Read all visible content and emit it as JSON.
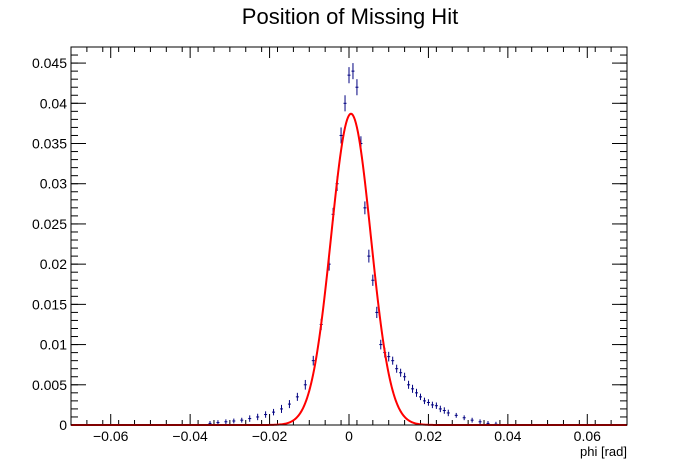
{
  "chart_data": {
    "type": "scatter",
    "title": "Position of Missing Hit",
    "xlabel": "phi [rad]",
    "ylabel": "",
    "xlim": [
      -0.07,
      0.07
    ],
    "ylim": [
      0,
      0.047
    ],
    "x_major_ticks": [
      -0.06,
      -0.04,
      -0.02,
      0,
      0.02,
      0.04,
      0.06
    ],
    "x_tick_labels": [
      "−0.06",
      "−0.04",
      "−0.02",
      "0",
      "0.02",
      "0.04",
      "0.06"
    ],
    "y_major_ticks": [
      0,
      0.005,
      0.01,
      0.015,
      0.02,
      0.025,
      0.03,
      0.035,
      0.04,
      0.045
    ],
    "y_tick_labels": [
      "0",
      "0.005",
      "0.01",
      "0.015",
      "0.02",
      "0.025",
      "0.03",
      "0.035",
      "0.04",
      "0.045"
    ],
    "grid": false,
    "legend": "none",
    "series": [
      {
        "kind": "histogram-points-with-errors",
        "color": "#000080",
        "x": [
          -0.035,
          -0.033,
          -0.031,
          -0.029,
          -0.027,
          -0.025,
          -0.023,
          -0.021,
          -0.019,
          -0.017,
          -0.015,
          -0.013,
          -0.011,
          -0.009,
          -0.007,
          -0.005,
          -0.004,
          -0.003,
          -0.002,
          -0.001,
          0.0,
          0.001,
          0.002,
          0.003,
          0.004,
          0.005,
          0.006,
          0.007,
          0.008,
          0.009,
          0.01,
          0.011,
          0.012,
          0.013,
          0.014,
          0.015,
          0.016,
          0.017,
          0.018,
          0.019,
          0.02,
          0.021,
          0.022,
          0.023,
          0.024,
          0.025,
          0.027,
          0.029,
          0.031,
          0.033,
          0.035,
          0.037
        ],
        "y": [
          0.0002,
          0.0003,
          0.0004,
          0.0005,
          0.0006,
          0.0008,
          0.001,
          0.0013,
          0.0016,
          0.002,
          0.0026,
          0.0035,
          0.005,
          0.008,
          0.0125,
          0.02,
          0.0262,
          0.03,
          0.036,
          0.04,
          0.0435,
          0.044,
          0.042,
          0.035,
          0.027,
          0.021,
          0.018,
          0.014,
          0.01,
          0.009,
          0.0085,
          0.008,
          0.007,
          0.0065,
          0.006,
          0.005,
          0.0045,
          0.004,
          0.0035,
          0.003,
          0.0028,
          0.0025,
          0.0024,
          0.002,
          0.0018,
          0.0015,
          0.0012,
          0.0009,
          0.0006,
          0.0004,
          0.0002,
          0.0001
        ],
        "yerr": [
          0.0003,
          0.0003,
          0.0003,
          0.0003,
          0.0003,
          0.0004,
          0.0004,
          0.0004,
          0.0004,
          0.0005,
          0.0005,
          0.0005,
          0.0006,
          0.0006,
          0.0007,
          0.0008,
          0.0008,
          0.0009,
          0.001,
          0.001,
          0.001,
          0.001,
          0.001,
          0.0009,
          0.0008,
          0.0008,
          0.0007,
          0.0007,
          0.0006,
          0.0006,
          0.0006,
          0.0005,
          0.0005,
          0.0005,
          0.0005,
          0.0005,
          0.0005,
          0.0005,
          0.0004,
          0.0004,
          0.0004,
          0.0004,
          0.0004,
          0.0004,
          0.0004,
          0.0004,
          0.0003,
          0.0003,
          0.0003,
          0.0003,
          0.0003,
          0.0003
        ]
      },
      {
        "kind": "gaussian-fit-line",
        "color": "#ff0000",
        "mean": 0.0005,
        "sigma": 0.005,
        "amplitude": 0.0387
      }
    ]
  }
}
